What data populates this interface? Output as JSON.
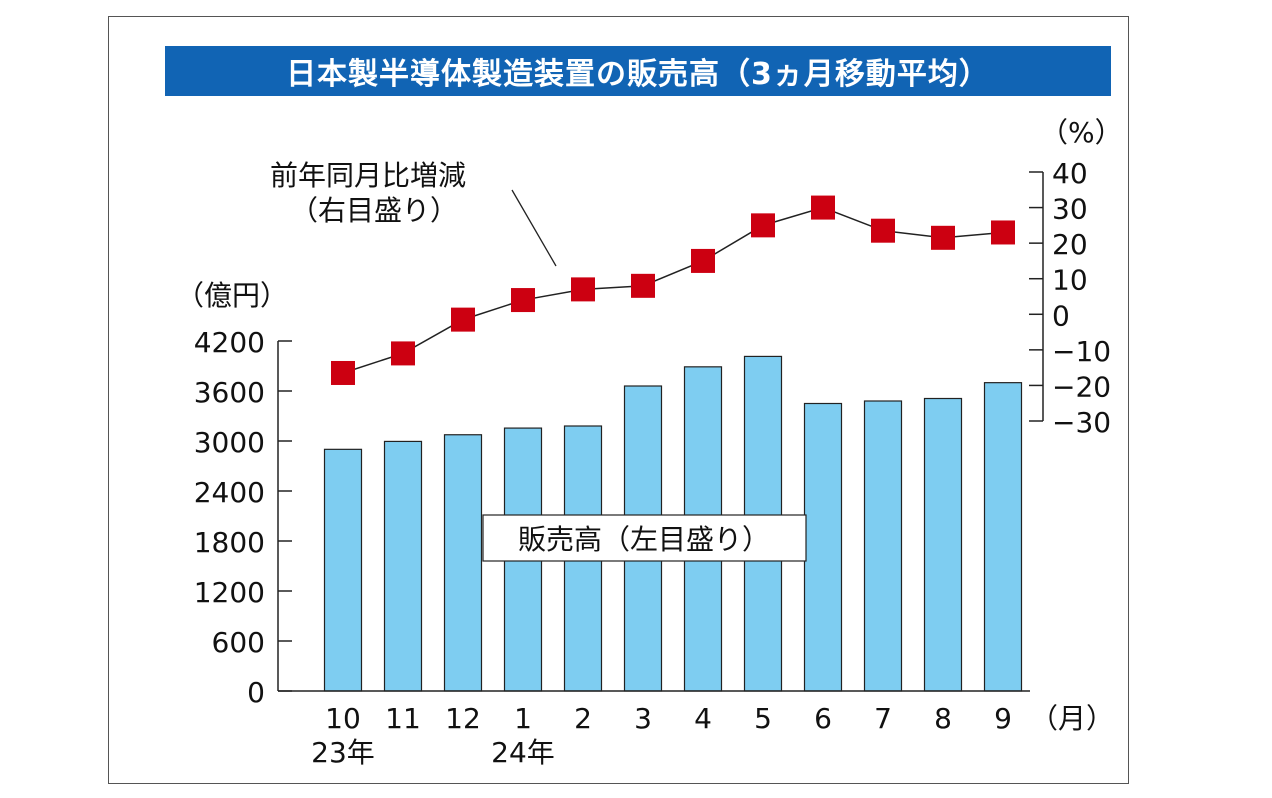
{
  "title": "日本製半導体製造装置の販売高（3ヵ月移動平均）",
  "chart_data": {
    "type": "bar+line",
    "categories": [
      "10",
      "11",
      "12",
      "1",
      "2",
      "3",
      "4",
      "5",
      "6",
      "7",
      "8",
      "9"
    ],
    "year_labels": [
      {
        "category_index": 0,
        "text": "23年"
      },
      {
        "category_index": 3,
        "text": "24年"
      }
    ],
    "x_unit": "（月）",
    "left_axis": {
      "unit": "（億円）",
      "ticks": [
        0,
        600,
        1200,
        1800,
        2400,
        3000,
        3600,
        4200
      ],
      "ylim": [
        0,
        4200
      ]
    },
    "right_axis": {
      "unit": "（%）",
      "ticks": [
        40,
        30,
        20,
        10,
        0,
        -10,
        -20,
        -30
      ],
      "ylim": [
        -30,
        40
      ]
    },
    "series": [
      {
        "name": "販売高（左目盛り）",
        "type": "bar",
        "axis": "left",
        "color": "#7ecdf1",
        "values": [
          2900,
          2995,
          3075,
          3155,
          3180,
          3660,
          3890,
          4015,
          3450,
          3480,
          3510,
          3700
        ]
      },
      {
        "name": "前年同月比増減（右目盛り）",
        "type": "line",
        "axis": "right",
        "marker_color": "#cc0011",
        "values": [
          -16.5,
          -11,
          -1.5,
          4,
          7,
          8,
          15,
          25,
          30,
          23.5,
          21.5,
          23
        ]
      }
    ],
    "annotations": {
      "line_label_1": "前年同月比増減",
      "line_label_2": "（右目盛り）",
      "bar_label": "販売高（左目盛り）"
    }
  }
}
